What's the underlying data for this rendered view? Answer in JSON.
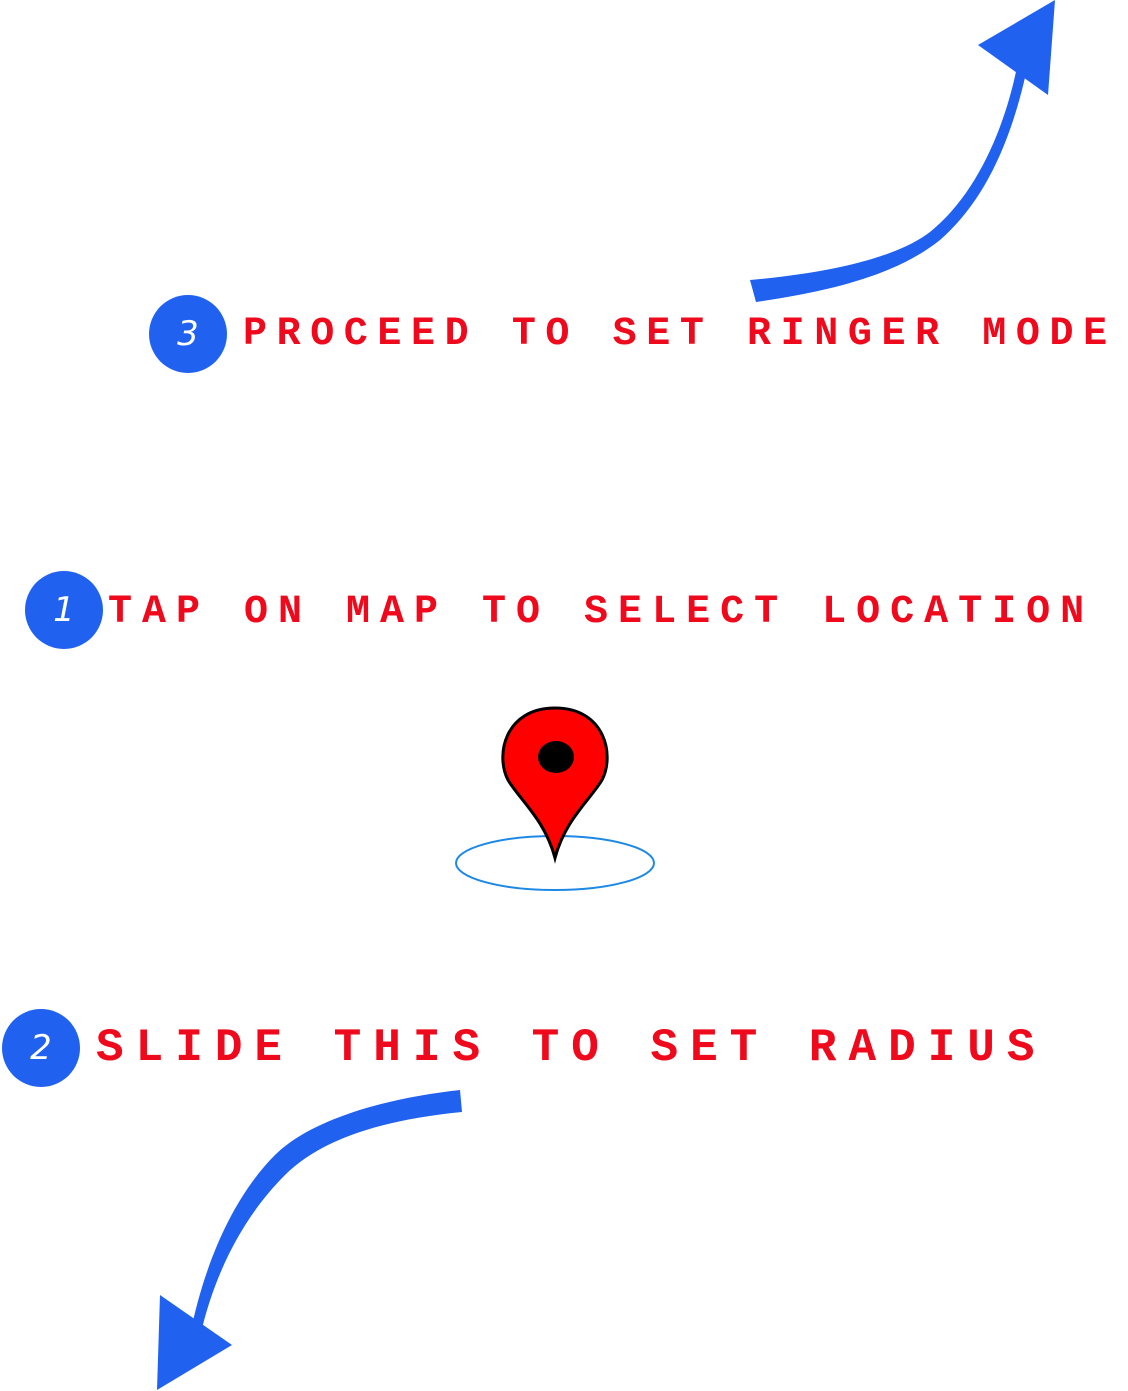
{
  "steps": [
    {
      "number": "3",
      "text": "PROCEED TO SET RINGER MODE"
    },
    {
      "number": "1",
      "text": "TAP ON MAP TO SELECT LOCATION"
    },
    {
      "number": "2",
      "text": "SLIDE THIS TO SET RADIUS"
    }
  ]
}
